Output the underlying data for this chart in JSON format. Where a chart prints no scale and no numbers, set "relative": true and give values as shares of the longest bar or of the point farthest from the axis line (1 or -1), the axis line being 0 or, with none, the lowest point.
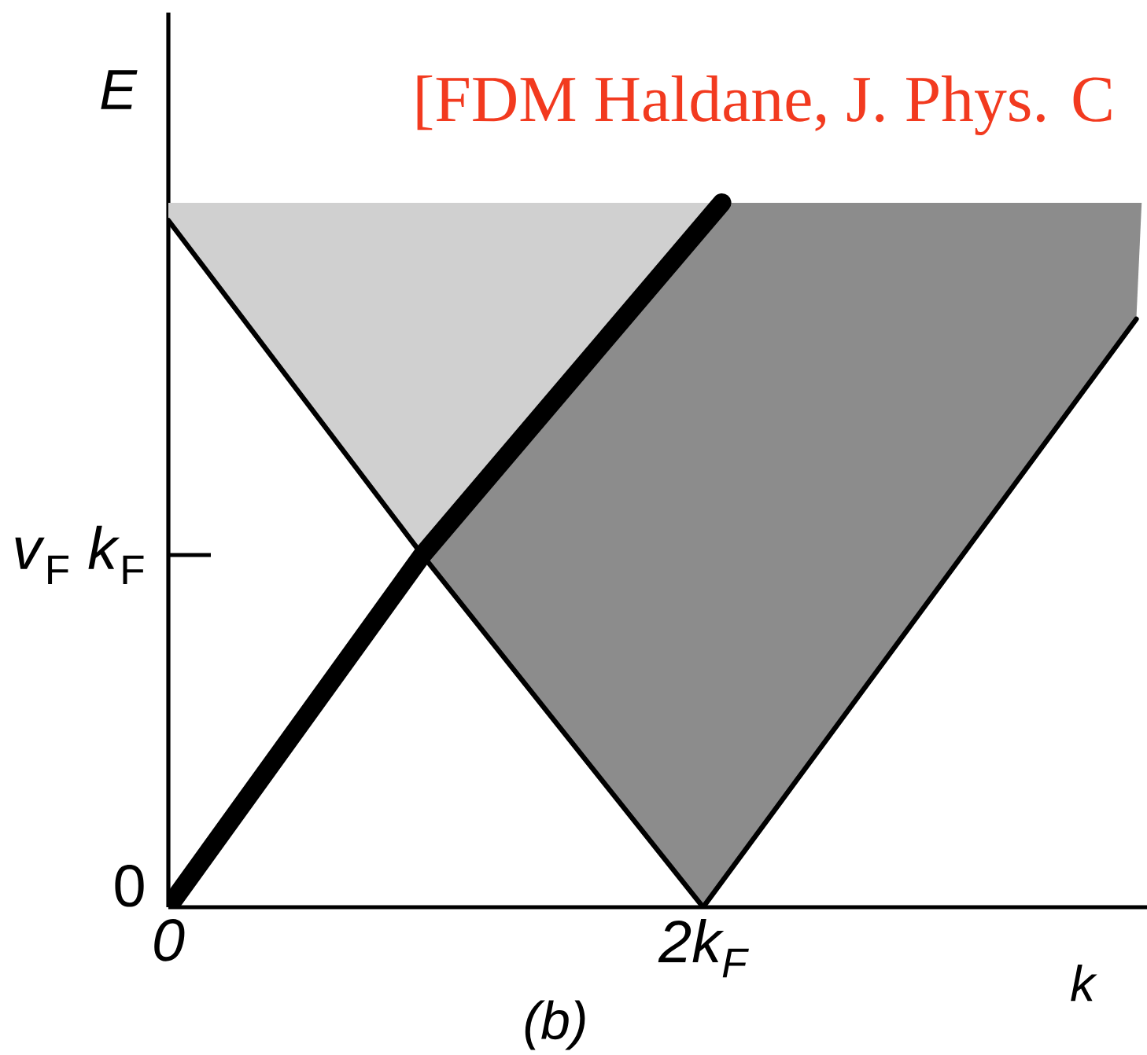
{
  "chart_data": {
    "type": "line",
    "xlabel": "k",
    "ylabel": "E",
    "relative": true,
    "xlim": [
      0,
      3.66
    ],
    "xticks": [
      0,
      {
        "value": 2,
        "label": "2k$_{F}$"
      }
    ],
    "marker": "none",
    "series": [
      {
        "type": "area",
        "color": "#d0d0d0",
        "x": [
          0,
          2.07,
          0.95,
          0
        ],
        "values": [
          1,
          1,
          0.5,
          0.975
        ]
      },
      {
        "type": "area",
        "color": "#8c8c8c",
        "x": [
          0.95,
          2.07,
          3.64,
          3.62,
          2,
          0.95
        ],
        "values": [
          0.5,
          1,
          1,
          0.835,
          0,
          0.5
        ]
      },
      {
        "type": "line",
        "color": "#000000",
        "x": [
          0,
          0.95,
          2.07
        ],
        "values": [
          0,
          0.5,
          1
        ]
      },
      {
        "type": "line",
        "color": "#000000",
        "x": [
          0,
          0.95,
          2,
          3.62
        ],
        "values": [
          0.975,
          0.5,
          0,
          0.835
        ]
      }
    ],
    "annotations": [
      "[FDM Haldane, J. Phys. C",
      "(b)",
      "0",
      "*v*$_{F}$ *k*$_{F}$"
    ]
  }
}
